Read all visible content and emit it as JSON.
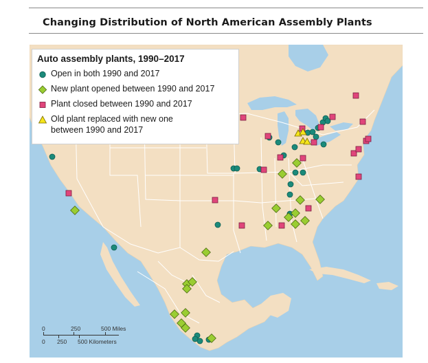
{
  "figure": {
    "title": "Changing Distribution of North American Assembly Plants"
  },
  "legend": {
    "title": "Auto assembly plants, 1990–2017",
    "items": [
      {
        "label": "Open in both 1990 and 2017",
        "symbol": "circle",
        "color": "#1b8a7a"
      },
      {
        "label": "New plant opened between 1990 and 2017",
        "symbol": "diamond",
        "color": "#9acd32"
      },
      {
        "label": "Plant closed between 1990 and 2017",
        "symbol": "square",
        "color": "#e0457b"
      },
      {
        "label_line1": "Old plant replaced with new one",
        "label_line2": "between 1990 and 2017",
        "symbol": "triangle",
        "color": "#f5e51b"
      }
    ]
  },
  "scale_bar": {
    "miles": [
      "0",
      "250",
      "500 Miles"
    ],
    "kilometers": [
      "0",
      "250",
      "500 Kilometers"
    ]
  },
  "colors": {
    "land": "#f3dfc2",
    "water": "#a8cfe8",
    "borders": "#ffffff",
    "open_both": "#1b8a7a",
    "new_plant": "#9acd32",
    "closed": "#e0457b",
    "replaced": "#f5e51b"
  },
  "map": {
    "region": "North America (United States, southern Canada, Mexico)",
    "plants": {
      "open_both": [
        "Fremont, CA",
        "Arlington, TX",
        "Chihuahua area, Mexico",
        "Wentzville, MO",
        "Kansas City, MO",
        "Kansas City, KS",
        "Belvidere, IL",
        "Janesville area, WI",
        "Chicago, IL",
        "Flint, MI",
        "Lansing, MI",
        "Detroit, MI",
        "Toledo, OH",
        "Lordstown, OH",
        "Oshawa, ON",
        "Oakville, ON",
        "Ingersoll, ON",
        "Cambridge, ON",
        "Alliston, ON",
        "St. Thomas, ON",
        "Marysville, OH",
        "Fort Wayne, IN",
        "Lafayette, IN",
        "Louisville, KY",
        "Bowling Green, KY",
        "Spring Hill, TN",
        "Smyrna, TN",
        "Toluca, Mexico",
        "Cuernavaca, Mexico",
        "Puebla, Mexico",
        "Aguascalientes, Mexico",
        "Hermosillo area, Mexico"
      ],
      "new_opened": [
        "Salinas area, CA",
        "San Antonio, TX",
        "Monterrey, Mexico",
        "Saltillo, Mexico",
        "Ramos Arizpe, Mexico",
        "Aguascalientes, Mexico",
        "Silao, Mexico",
        "Celaya, Mexico",
        "Salamanca, Mexico",
        "Puebla, Mexico",
        "Puebla east, Mexico",
        "Canton, MS",
        "Blue Springs, MS",
        "Lincoln, AL",
        "Vance, AL",
        "Montgomery, AL",
        "West Point, GA",
        "Chattanooga, TN",
        "Greer, SC",
        "Princeton, IN",
        "Lafayette, IN",
        "Georgetown, KY",
        "East Liberty, OH",
        "Tupelo, MS"
      ],
      "closed": [
        "Van Nuys, CA",
        "Oklahoma City, OK",
        "Shreveport, LA",
        "St. Paul, MN",
        "Framingham, MA",
        "Tarrytown, NY",
        "Linden, NJ",
        "Newark, DE",
        "Baltimore, MD",
        "Norfolk, VA",
        "Doraville, GA",
        "Hapeville, GA",
        "Janesville, WI",
        "Kenosha, WI",
        "Pontiac, MI",
        "Windsor, ON",
        "Ste-Thérèse, QC",
        "Wilmington, DE",
        "Moraine, OH",
        "St. Louis, MO",
        "Oklahoma area, OK",
        "Atlanta, GA"
      ],
      "replaced": [
        "Lansing, MI",
        "Detroit area, MI",
        "Flat Rock, MI",
        "Toledo, OH"
      ]
    }
  }
}
